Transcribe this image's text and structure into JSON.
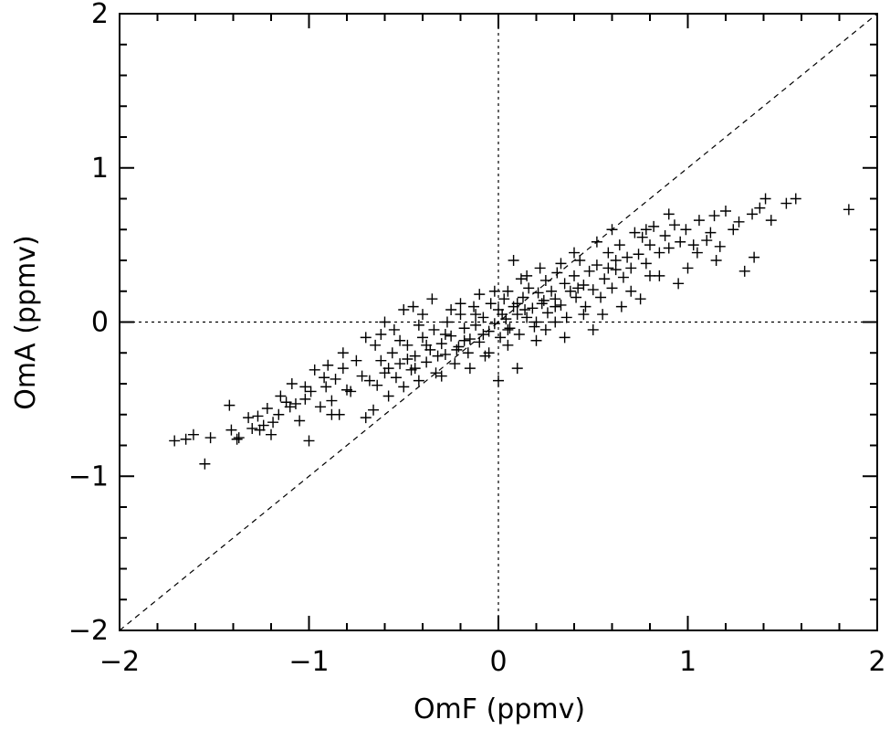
{
  "chart_data": {
    "type": "scatter",
    "title": "",
    "xlabel": "OmF (ppmv)",
    "ylabel": "OmA (ppmv)",
    "xlim": [
      -2,
      2
    ],
    "ylim": [
      -2,
      2
    ],
    "x_ticks": [
      -2,
      -1,
      0,
      1,
      2
    ],
    "y_ticks": [
      -2,
      -1,
      0,
      1,
      2
    ],
    "x_tick_labels": [
      "−2",
      "−1",
      "0",
      "1",
      "2"
    ],
    "y_tick_labels": [
      "−2",
      "−1",
      "0",
      "1",
      "2"
    ],
    "marker": "+",
    "reference_lines": [
      {
        "type": "identity",
        "style": "dashed",
        "from": [
          -2,
          -2
        ],
        "to": [
          2,
          2
        ]
      },
      {
        "type": "vertical",
        "x": 0,
        "style": "dotted"
      },
      {
        "type": "horizontal",
        "y": 0,
        "style": "dotted"
      }
    ],
    "points": [
      [
        -1.71,
        -0.77
      ],
      [
        -1.65,
        -0.76
      ],
      [
        -1.61,
        -0.73
      ],
      [
        -1.55,
        -0.92
      ],
      [
        -1.52,
        -0.75
      ],
      [
        -1.42,
        -0.54
      ],
      [
        -1.41,
        -0.7
      ],
      [
        -1.38,
        -0.76
      ],
      [
        -1.37,
        -0.75
      ],
      [
        -1.3,
        -0.69
      ],
      [
        -1.27,
        -0.61
      ],
      [
        -1.26,
        -0.7
      ],
      [
        -1.24,
        -0.67
      ],
      [
        -1.2,
        -0.73
      ],
      [
        -1.19,
        -0.65
      ],
      [
        -1.16,
        -0.6
      ],
      [
        -1.12,
        -0.52
      ],
      [
        -1.1,
        -0.55
      ],
      [
        -1.09,
        -0.4
      ],
      [
        -1.07,
        -0.53
      ],
      [
        -1.05,
        -0.64
      ],
      [
        -1.02,
        -0.5
      ],
      [
        -0.99,
        -0.45
      ],
      [
        -0.97,
        -0.31
      ],
      [
        -0.94,
        -0.55
      ],
      [
        -0.91,
        -0.42
      ],
      [
        -0.9,
        -0.28
      ],
      [
        -0.88,
        -0.51
      ],
      [
        -0.86,
        -0.37
      ],
      [
        -0.84,
        -0.6
      ],
      [
        -0.82,
        -0.3
      ],
      [
        -0.8,
        -0.44
      ],
      [
        -1.0,
        -0.77
      ],
      [
        -0.7,
        -0.62
      ],
      [
        -0.66,
        -0.57
      ],
      [
        -0.64,
        -0.41
      ],
      [
        -0.62,
        -0.25
      ],
      [
        -0.6,
        -0.33
      ],
      [
        -0.58,
        -0.48
      ],
      [
        -0.56,
        -0.2
      ],
      [
        -0.54,
        -0.36
      ],
      [
        -0.52,
        -0.27
      ],
      [
        -0.5,
        -0.42
      ],
      [
        -0.48,
        -0.15
      ],
      [
        -0.46,
        -0.31
      ],
      [
        -0.44,
        -0.22
      ],
      [
        -0.42,
        -0.38
      ],
      [
        -0.5,
        0.08
      ],
      [
        -0.45,
        0.1
      ],
      [
        -0.4,
        0.05
      ],
      [
        -0.4,
        -0.1
      ],
      [
        -0.38,
        -0.26
      ],
      [
        -0.36,
        -0.18
      ],
      [
        -0.34,
        -0.05
      ],
      [
        -0.33,
        -0.33
      ],
      [
        -0.3,
        -0.14
      ],
      [
        -0.28,
        -0.21
      ],
      [
        -0.27,
        0.0
      ],
      [
        -0.25,
        -0.09
      ],
      [
        -0.23,
        -0.27
      ],
      [
        -0.21,
        -0.16
      ],
      [
        -0.2,
        0.05
      ],
      [
        -0.18,
        -0.04
      ],
      [
        -0.16,
        -0.2
      ],
      [
        -0.15,
        -0.11
      ],
      [
        -0.13,
        0.1
      ],
      [
        -0.12,
        -0.02
      ],
      [
        -0.1,
        -0.13
      ],
      [
        -0.08,
        0.03
      ],
      [
        -0.07,
        -0.22
      ],
      [
        -0.05,
        -0.06
      ],
      [
        -0.04,
        0.12
      ],
      [
        -0.02,
        -0.01
      ],
      [
        0.0,
        -0.38
      ],
      [
        0.0,
        0.08
      ],
      [
        0.01,
        -0.1
      ],
      [
        0.03,
        0.15
      ],
      [
        0.04,
        0.02
      ],
      [
        0.05,
        0.2
      ],
      [
        0.06,
        -0.04
      ],
      [
        0.08,
        0.1
      ],
      [
        0.1,
        0.05
      ],
      [
        0.11,
        -0.08
      ],
      [
        0.13,
        0.16
      ],
      [
        0.15,
        0.03
      ],
      [
        0.16,
        0.22
      ],
      [
        0.18,
        0.09
      ],
      [
        0.19,
        -0.03
      ],
      [
        0.21,
        0.19
      ],
      [
        0.23,
        0.12
      ],
      [
        0.25,
        0.27
      ],
      [
        0.26,
        0.06
      ],
      [
        0.28,
        0.2
      ],
      [
        0.3,
        0.15
      ],
      [
        0.31,
        0.32
      ],
      [
        0.33,
        0.11
      ],
      [
        0.35,
        0.25
      ],
      [
        0.36,
        0.03
      ],
      [
        0.38,
        0.2
      ],
      [
        0.4,
        0.3
      ],
      [
        0.41,
        0.16
      ],
      [
        0.43,
        0.4
      ],
      [
        0.45,
        0.24
      ],
      [
        0.46,
        0.1
      ],
      [
        0.48,
        0.33
      ],
      [
        0.5,
        0.21
      ],
      [
        0.52,
        0.37
      ],
      [
        0.54,
        0.16
      ],
      [
        0.56,
        0.28
      ],
      [
        0.58,
        0.45
      ],
      [
        0.6,
        0.22
      ],
      [
        0.62,
        0.34
      ],
      [
        0.64,
        0.5
      ],
      [
        0.66,
        0.29
      ],
      [
        0.68,
        0.42
      ],
      [
        0.7,
        0.35
      ],
      [
        0.72,
        0.58
      ],
      [
        0.74,
        0.44
      ],
      [
        0.76,
        0.55
      ],
      [
        0.78,
        0.38
      ],
      [
        0.8,
        0.5
      ],
      [
        0.82,
        0.62
      ],
      [
        0.85,
        0.45
      ],
      [
        0.88,
        0.56
      ],
      [
        0.9,
        0.48
      ],
      [
        0.93,
        0.63
      ],
      [
        0.96,
        0.52
      ],
      [
        0.99,
        0.6
      ],
      [
        1.03,
        0.5
      ],
      [
        1.06,
        0.66
      ],
      [
        1.1,
        0.53
      ],
      [
        1.14,
        0.69
      ],
      [
        1.17,
        0.49
      ],
      [
        1.2,
        0.72
      ],
      [
        1.24,
        0.6
      ],
      [
        1.27,
        0.65
      ],
      [
        1.3,
        0.33
      ],
      [
        1.34,
        0.7
      ],
      [
        1.38,
        0.74
      ],
      [
        1.41,
        0.8
      ],
      [
        1.44,
        0.66
      ],
      [
        1.52,
        0.77
      ],
      [
        1.57,
        0.8
      ],
      [
        1.35,
        0.42
      ],
      [
        1.85,
        0.73
      ],
      [
        0.1,
        -0.3
      ],
      [
        -0.05,
        -0.2
      ],
      [
        -0.2,
        0.12
      ],
      [
        0.15,
        0.3
      ],
      [
        0.35,
        -0.1
      ],
      [
        0.4,
        0.45
      ],
      [
        0.55,
        0.05
      ],
      [
        0.7,
        0.2
      ],
      [
        0.6,
        0.6
      ],
      [
        1.0,
        0.35
      ],
      [
        0.95,
        0.25
      ],
      [
        1.15,
        0.4
      ],
      [
        0.25,
        -0.05
      ],
      [
        -0.35,
        0.15
      ],
      [
        -0.6,
        0.0
      ],
      [
        -0.7,
        -0.1
      ],
      [
        -0.75,
        -0.25
      ],
      [
        -0.78,
        -0.45
      ],
      [
        -0.72,
        -0.35
      ],
      [
        -0.65,
        -0.15
      ],
      [
        -0.55,
        -0.05
      ],
      [
        -0.3,
        -0.35
      ],
      [
        -0.15,
        -0.3
      ],
      [
        0.05,
        -0.15
      ],
      [
        0.2,
        -0.12
      ],
      [
        0.3,
        0.0
      ],
      [
        0.45,
        0.05
      ],
      [
        0.5,
        -0.05
      ],
      [
        0.65,
        0.1
      ],
      [
        0.75,
        0.15
      ],
      [
        0.85,
        0.3
      ],
      [
        1.05,
        0.45
      ],
      [
        1.12,
        0.58
      ],
      [
        0.52,
        0.52
      ],
      [
        0.33,
        0.38
      ],
      [
        0.12,
        0.28
      ],
      [
        -0.02,
        0.2
      ],
      [
        -0.1,
        0.18
      ],
      [
        -0.25,
        0.08
      ],
      [
        -0.42,
        -0.02
      ],
      [
        -0.52,
        -0.12
      ],
      [
        -0.62,
        -0.08
      ],
      [
        -0.82,
        -0.2
      ],
      [
        -0.92,
        -0.36
      ],
      [
        -1.02,
        -0.42
      ],
      [
        -1.15,
        -0.48
      ],
      [
        -1.22,
        -0.56
      ],
      [
        -1.32,
        -0.62
      ],
      [
        0.08,
        0.4
      ],
      [
        0.22,
        0.35
      ],
      [
        0.58,
        0.35
      ],
      [
        0.78,
        0.6
      ],
      [
        0.9,
        0.7
      ],
      [
        0.2,
        0.0
      ],
      [
        0.02,
        0.05
      ],
      [
        -0.08,
        -0.08
      ],
      [
        -0.18,
        -0.12
      ],
      [
        -0.28,
        -0.08
      ],
      [
        -0.38,
        -0.15
      ],
      [
        -0.48,
        -0.24
      ],
      [
        -0.58,
        -0.3
      ],
      [
        -0.68,
        -0.38
      ],
      [
        -0.88,
        -0.6
      ],
      [
        0.3,
        0.1
      ],
      [
        0.42,
        0.22
      ],
      [
        0.62,
        0.4
      ],
      [
        0.8,
        0.3
      ],
      [
        0.1,
        0.12
      ],
      [
        -0.12,
        0.05
      ],
      [
        0.05,
        -0.05
      ],
      [
        0.14,
        0.08
      ],
      [
        0.24,
        0.14
      ],
      [
        -0.22,
        -0.18
      ],
      [
        -0.32,
        -0.22
      ],
      [
        -0.44,
        -0.3
      ]
    ]
  }
}
